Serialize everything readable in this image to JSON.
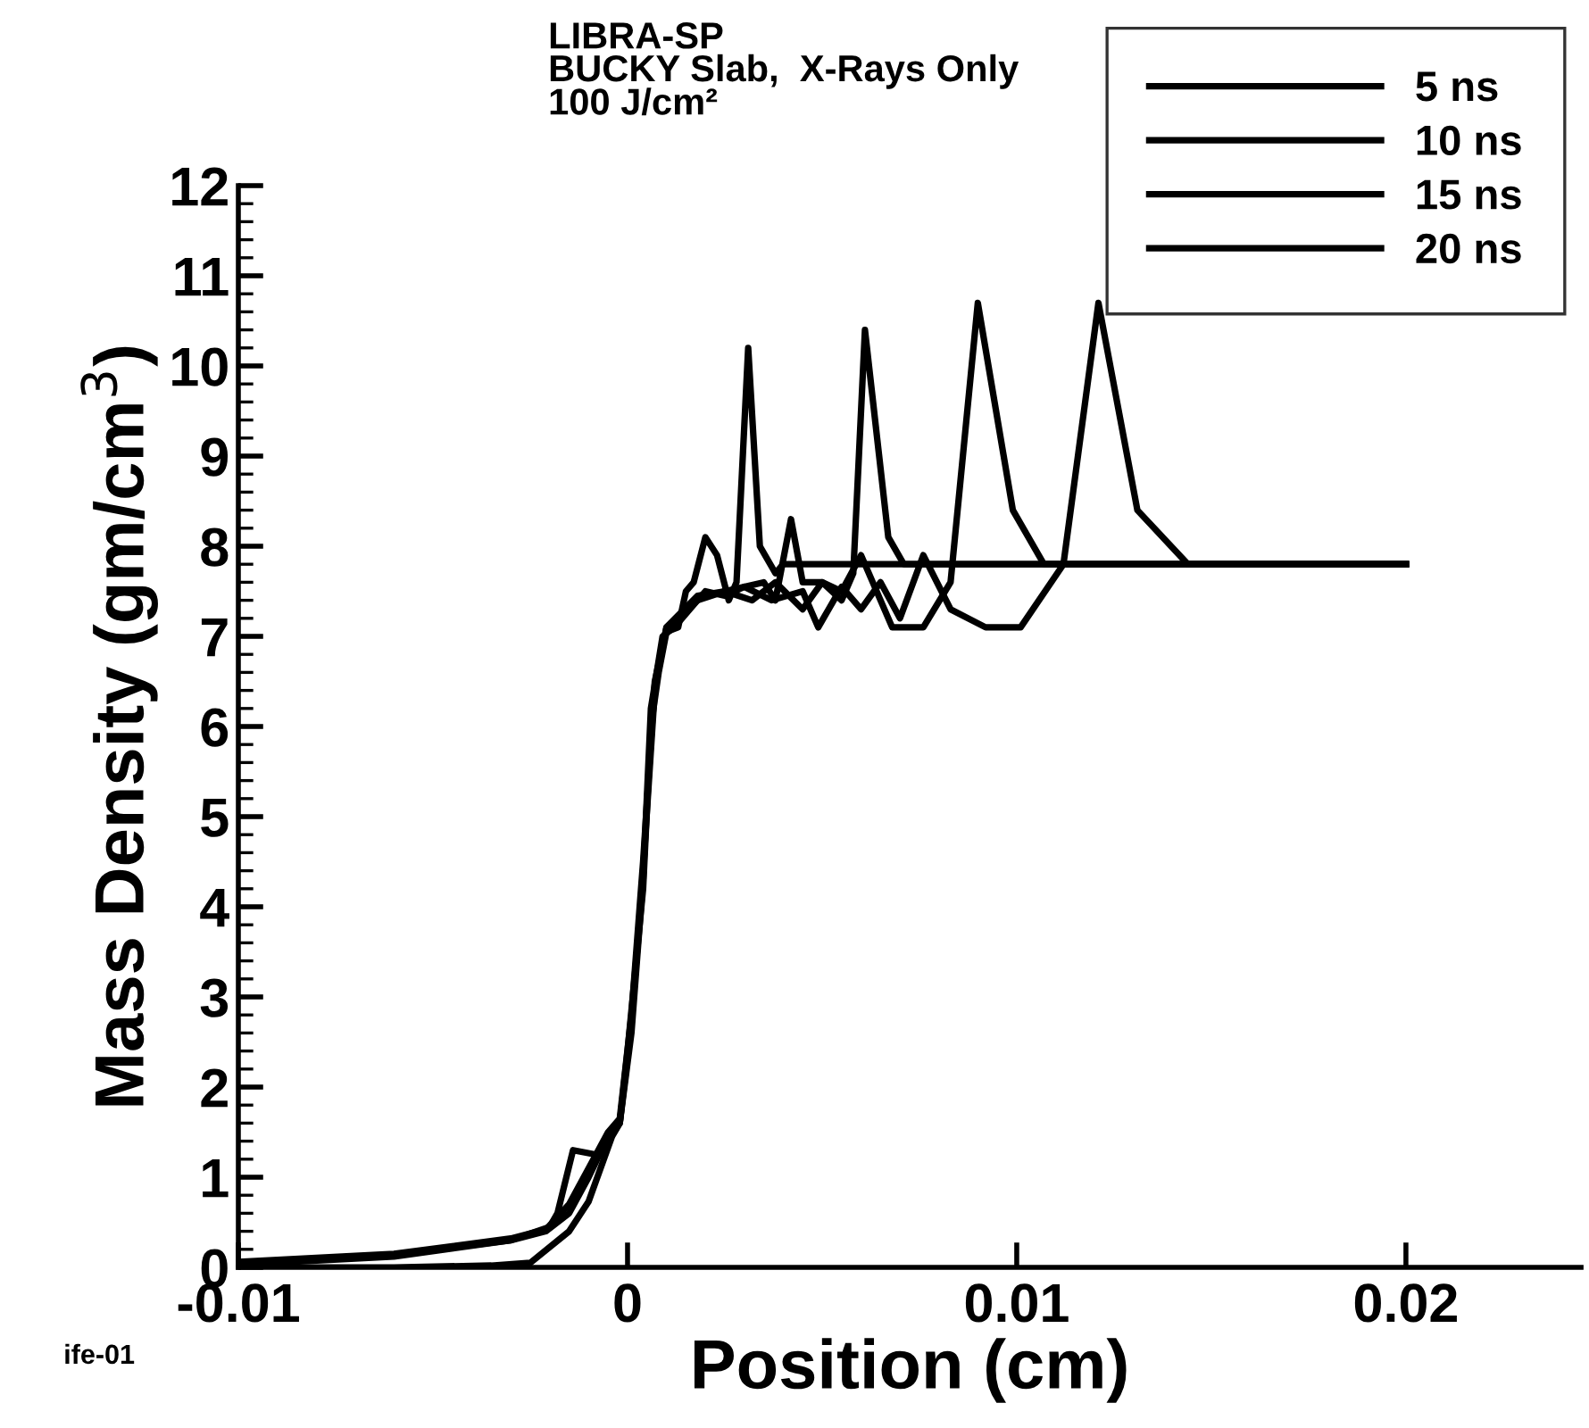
{
  "chart_data": {
    "type": "line",
    "title": "LIBRA-SP",
    "subtitle": "BUCKY Slab,  X-Rays Only\n100 J/cm²",
    "xlabel": "Position (cm)",
    "ylabel": "Mass Density (gm/cm$^{3}$)",
    "annotations": [
      "ife-01"
    ],
    "xlim": [
      -0.01,
      0.0245
    ],
    "xticks": [
      {
        "value": -0.01,
        "label": "-0.01"
      },
      0,
      0.01,
      0.02
    ],
    "ylim": [
      0,
      12
    ],
    "yticks": [
      0,
      1,
      2,
      3,
      4,
      5,
      6,
      7,
      8,
      9,
      10,
      11,
      12
    ],
    "grid": false,
    "legend": "top right",
    "marker": "none",
    "line_style": "solid",
    "series": [
      {
        "name": "5 ns",
        "color": "#000000",
        "x": [
          -0.01,
          -0.006,
          -0.0035,
          -0.0025,
          -0.0015,
          -0.001,
          -0.0004,
          -0.0002,
          0,
          0.0004,
          0.0006,
          0.0008,
          0.001,
          0.0013,
          0.0015,
          0.0017,
          0.002,
          0.0023,
          0.0026,
          0.0028,
          0.0031,
          0.0034,
          0.0038,
          0.004,
          0.02
        ],
        "values": [
          0,
          0,
          0.02,
          0.05,
          0.4,
          0.73,
          1.45,
          1.6,
          2.4,
          4.2,
          6.0,
          6.6,
          7.05,
          7.1,
          7.5,
          7.6,
          8.1,
          7.9,
          7.4,
          7.6,
          10.2,
          8.0,
          7.7,
          7.8,
          7.8
        ]
      },
      {
        "name": "10 ns",
        "color": "#000000",
        "x": [
          -0.01,
          -0.006,
          -0.003,
          -0.002,
          -0.0018,
          -0.0014,
          -0.0008,
          -0.0005,
          -0.0002,
          0.0001,
          0.0004,
          0.0006,
          0.0009,
          0.0012,
          0.0016,
          0.002,
          0.0025,
          0.003,
          0.0035,
          0.0038,
          0.0042,
          0.0045,
          0.005,
          0.0055,
          0.0058,
          0.0061,
          0.0067,
          0.0071,
          0.02
        ],
        "values": [
          0.03,
          0.12,
          0.3,
          0.45,
          0.6,
          1.3,
          1.25,
          1.4,
          1.6,
          2.6,
          4.3,
          6.2,
          7.0,
          7.1,
          7.3,
          7.5,
          7.45,
          7.55,
          7.6,
          7.4,
          8.3,
          7.6,
          7.6,
          7.4,
          7.7,
          10.4,
          8.1,
          7.8,
          7.8
        ]
      },
      {
        "name": "15 ns",
        "color": "#000000",
        "x": [
          -0.01,
          -0.006,
          -0.003,
          -0.0021,
          -0.0015,
          -0.001,
          -0.0005,
          -0.0002,
          0.0001,
          0.0004,
          0.0007,
          0.001,
          0.0018,
          0.0025,
          0.0032,
          0.0038,
          0.0045,
          0.005,
          0.0055,
          0.006,
          0.0063,
          0.0068,
          0.0076,
          0.0083,
          0.009,
          0.0099,
          0.0107,
          0.02
        ],
        "values": [
          0.05,
          0.14,
          0.3,
          0.4,
          0.6,
          1.0,
          1.45,
          1.6,
          2.7,
          4.4,
          6.4,
          7.1,
          7.4,
          7.5,
          7.4,
          7.6,
          7.3,
          7.6,
          7.5,
          7.9,
          7.6,
          7.1,
          7.1,
          7.6,
          10.7,
          8.4,
          7.8,
          7.8
        ]
      },
      {
        "name": "20 ns",
        "color": "#000000",
        "x": [
          -0.01,
          -0.006,
          -0.003,
          -0.0021,
          -0.0015,
          -0.001,
          -0.0005,
          -0.0002,
          0.0001,
          0.0004,
          0.0007,
          0.001,
          0.0018,
          0.0025,
          0.003,
          0.0037,
          0.0045,
          0.0049,
          0.0055,
          0.006,
          0.0065,
          0.007,
          0.0076,
          0.0083,
          0.0092,
          0.0101,
          0.0112,
          0.0121,
          0.0131,
          0.0144,
          0.02
        ],
        "values": [
          0.06,
          0.15,
          0.32,
          0.42,
          0.7,
          1.1,
          1.5,
          1.65,
          2.8,
          4.5,
          6.5,
          7.1,
          7.45,
          7.5,
          7.55,
          7.4,
          7.5,
          7.1,
          7.55,
          7.3,
          7.6,
          7.2,
          7.9,
          7.3,
          7.1,
          7.1,
          7.8,
          10.7,
          8.4,
          7.8,
          7.8
        ]
      }
    ]
  }
}
